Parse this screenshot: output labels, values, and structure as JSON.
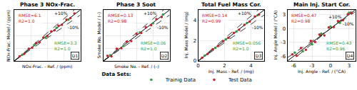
{
  "chart_data": {
    "type": "scatter",
    "grid": true,
    "legend": "bottom",
    "legend_title": "Data Sets:",
    "panels": [
      {
        "title": "Phase 3 NOx-Frac.",
        "x_label": "NOx-Frac. - Ref. / (ppm)",
        "y_label": "NOx-Frac. Model / (ppm)",
        "panel_label": "D1",
        "tick_labels": false,
        "xlim": [
          0,
          100
        ],
        "ylim": [
          0,
          100
        ],
        "xticks": [
          0,
          25,
          50,
          75,
          100
        ],
        "yticks": [
          0,
          25,
          50,
          75,
          100
        ],
        "reference_lines": [
          {
            "x": [
              0,
              100
            ],
            "y": [
              0,
              100
            ],
            "color": "#000000",
            "line_style": "solid"
          },
          {
            "name": "+10%",
            "x": [
              0,
              100
            ],
            "y": [
              0,
              110
            ],
            "color": "#000000",
            "line_style": "dashed"
          },
          {
            "name": "-10%",
            "x": [
              0,
              100
            ],
            "y": [
              0,
              90
            ],
            "color": "#000000",
            "line_style": "dashed"
          }
        ],
        "series": [
          {
            "name": "Trainig Data",
            "color": "#2e9e3e",
            "marker": "circle",
            "stats": [
              "RMSE=3.3",
              "R2=1.0"
            ],
            "x": [
              12,
              30,
              47,
              64,
              82
            ],
            "values": [
              12,
              31,
              46,
              65,
              81
            ]
          },
          {
            "name": "Test Data",
            "color": "#c8202a",
            "marker": "circle",
            "stats": [
              "RMSE=6.1",
              "R2=1.0"
            ],
            "x": [
              8,
              15,
              22,
              27,
              33,
              38,
              44,
              50,
              56,
              61,
              67,
              72,
              79,
              85,
              91
            ],
            "values": [
              9,
              14,
              24,
              26,
              35,
              37,
              46,
              49,
              58,
              60,
              69,
              71,
              81,
              84,
              93
            ]
          }
        ]
      },
      {
        "title": "Phase 3 Soot",
        "x_label": "Smoke No. - Ref. / (–)",
        "y_label": "Smoke No. Model / (–)",
        "panel_label": "D2",
        "tick_labels": false,
        "xlim": [
          0,
          1
        ],
        "ylim": [
          0,
          1
        ],
        "xticks": [
          0,
          0.25,
          0.5,
          0.75,
          1
        ],
        "yticks": [
          0,
          0.25,
          0.5,
          0.75,
          1
        ],
        "reference_lines": [
          {
            "x": [
              0,
              1
            ],
            "y": [
              0,
              1
            ],
            "color": "#000000",
            "line_style": "solid"
          },
          {
            "name": "+10%",
            "x": [
              0,
              1
            ],
            "y": [
              0,
              1.1
            ],
            "color": "#000000",
            "line_style": "dashed"
          },
          {
            "name": "-10%",
            "x": [
              0,
              1
            ],
            "y": [
              0,
              0.9
            ],
            "color": "#000000",
            "line_style": "dashed"
          }
        ],
        "series": [
          {
            "name": "Trainig Data",
            "color": "#2e9e3e",
            "marker": "circle",
            "stats": [
              "RMSE=0.06",
              "R2=1.0"
            ],
            "x": [
              0.1,
              0.3,
              0.55,
              0.75,
              0.9
            ],
            "values": [
              0.11,
              0.29,
              0.56,
              0.74,
              0.91
            ]
          },
          {
            "name": "Test Data",
            "color": "#c8202a",
            "marker": "circle",
            "stats": [
              "RMSE=0.13",
              "R2=0.98"
            ],
            "x": [
              0.06,
              0.12,
              0.2,
              0.27,
              0.35,
              0.42,
              0.5,
              0.57,
              0.64,
              0.72,
              0.8,
              0.88
            ],
            "values": [
              0.1,
              0.09,
              0.24,
              0.25,
              0.38,
              0.39,
              0.53,
              0.55,
              0.66,
              0.7,
              0.82,
              0.86
            ]
          }
        ]
      },
      {
        "title": "Total Fuel Mass Cor.",
        "x_label": "Inj. Mass - Ref. / (mg)",
        "y_label": "Inj. Mass Model / (mg)",
        "panel_label": "D3",
        "xlim": [
          0,
          5
        ],
        "ylim": [
          0,
          5
        ],
        "xticks": [
          0,
          2,
          4
        ],
        "yticks": [
          0,
          2,
          4
        ],
        "reference_lines": [
          {
            "x": [
              0,
              5
            ],
            "y": [
              0,
              5
            ],
            "color": "#000000",
            "line_style": "solid"
          },
          {
            "name": "+10%",
            "x": [
              0,
              5
            ],
            "y": [
              0,
              5.5
            ],
            "color": "#000000",
            "line_style": "dashed"
          },
          {
            "name": "-10%",
            "x": [
              0,
              5
            ],
            "y": [
              0,
              4.5
            ],
            "color": "#000000",
            "line_style": "dashed"
          }
        ],
        "series": [
          {
            "name": "Trainig Data",
            "color": "#2e9e3e",
            "marker": "circle",
            "stats": [
              "RMSE=0.056",
              "R2=1.0"
            ],
            "x": [
              0.5,
              1.3,
              2.1,
              2.9,
              3.7,
              4.5
            ],
            "values": [
              0.52,
              1.28,
              2.12,
              2.88,
              3.72,
              4.48
            ]
          },
          {
            "name": "Test Data",
            "color": "#c8202a",
            "marker": "circle",
            "stats": [
              "RMSE=0.14",
              "R2=0.99"
            ],
            "x": [
              0.3,
              0.7,
              1.1,
              1.5,
              1.9,
              2.3,
              2.7,
              3.1,
              3.5,
              3.9,
              4.3,
              4.6
            ],
            "values": [
              0.32,
              0.68,
              1.15,
              1.45,
              1.95,
              2.28,
              2.75,
              3.05,
              3.55,
              3.85,
              4.35,
              4.55
            ]
          }
        ]
      },
      {
        "title": "Main Inj. Start Cor.",
        "x_label": "Inj. Angle - Ref. / (°CA)",
        "y_label": "Inj. Angle Model / (°CA)",
        "panel_label": "D4",
        "xlim": [
          -7,
          4
        ],
        "ylim": [
          -7,
          4
        ],
        "xticks": [
          -6,
          -3,
          0,
          3
        ],
        "yticks": [
          -6,
          -3,
          0,
          3
        ],
        "reference_lines": [
          {
            "x": [
              -7,
              4
            ],
            "y": [
              -7,
              4
            ],
            "color": "#000000",
            "line_style": "solid"
          },
          {
            "name": "+10%",
            "x": [
              -7,
              4
            ],
            "y": [
              -7.7,
              4.4
            ],
            "color": "#000000",
            "line_style": "dashed"
          },
          {
            "name": "-10%",
            "x": [
              -7,
              4
            ],
            "y": [
              -6.3,
              3.6
            ],
            "color": "#000000",
            "line_style": "dashed"
          }
        ],
        "series": [
          {
            "name": "Trainig Data",
            "color": "#2e9e3e",
            "marker": "circle",
            "stats": [
              "RMSE=0.43",
              "R2=0.96"
            ],
            "x": [
              -5.8,
              -4.5,
              -3,
              -1.5,
              0,
              1.5,
              3
            ],
            "values": [
              -5.2,
              -4.9,
              -3.4,
              -1.1,
              0.4,
              1.2,
              3.4
            ]
          },
          {
            "name": "Test Data",
            "color": "#c8202a",
            "marker": "circle",
            "stats": [
              "RMSE=0.47",
              "R2=0.98"
            ],
            "x": [
              -6.2,
              -5.5,
              -4.8,
              -4,
              -3.2,
              -2.5,
              -1.8,
              -1,
              -0.3,
              0.5,
              1.2,
              2,
              2.8,
              3.4
            ],
            "values": [
              -5.6,
              -5.9,
              -4.2,
              -4.6,
              -2.7,
              -2.9,
              -1.3,
              -1.5,
              0.2,
              0.3,
              1.6,
              1.8,
              3.1,
              3.3
            ]
          }
        ]
      }
    ]
  }
}
